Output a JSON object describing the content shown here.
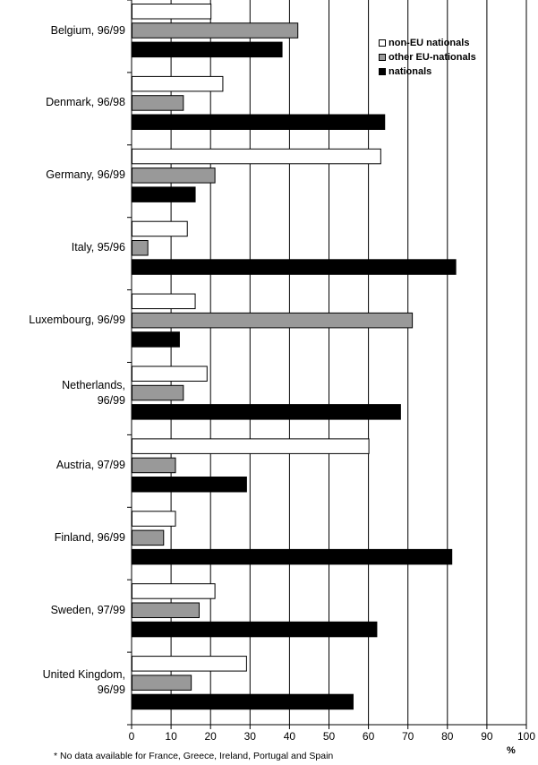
{
  "chart_data": {
    "type": "bar",
    "orientation": "horizontal",
    "categories": [
      "Belgium, 96/99",
      "Denmark, 96/98",
      "Germany, 96/99",
      "Italy, 95/96",
      "Luxembourg, 96/99",
      "Netherlands, 96/99",
      "Austria, 97/99",
      "Finland, 96/99",
      "Sweden, 97/99",
      "United Kingdom, 96/99"
    ],
    "series": [
      {
        "name": "non-EU nationals",
        "color": "#ffffff",
        "values": [
          20,
          23,
          63,
          14,
          16,
          19,
          60,
          11,
          21,
          29
        ]
      },
      {
        "name": "other EU-nationals",
        "color": "#999999",
        "values": [
          42,
          13,
          21,
          4,
          71,
          13,
          11,
          8,
          17,
          15
        ]
      },
      {
        "name": "nationals",
        "color": "#000000",
        "values": [
          38,
          64,
          16,
          82,
          12,
          68,
          29,
          81,
          62,
          56
        ]
      }
    ],
    "xlim": [
      0,
      100
    ],
    "xticks": [
      0,
      10,
      20,
      30,
      40,
      50,
      60,
      70,
      80,
      90,
      100
    ],
    "xlabel": "%",
    "grid": true,
    "legend_position": "top-right",
    "footnote": "* No data available for France, Greece, Ireland, Portugal and Spain"
  }
}
